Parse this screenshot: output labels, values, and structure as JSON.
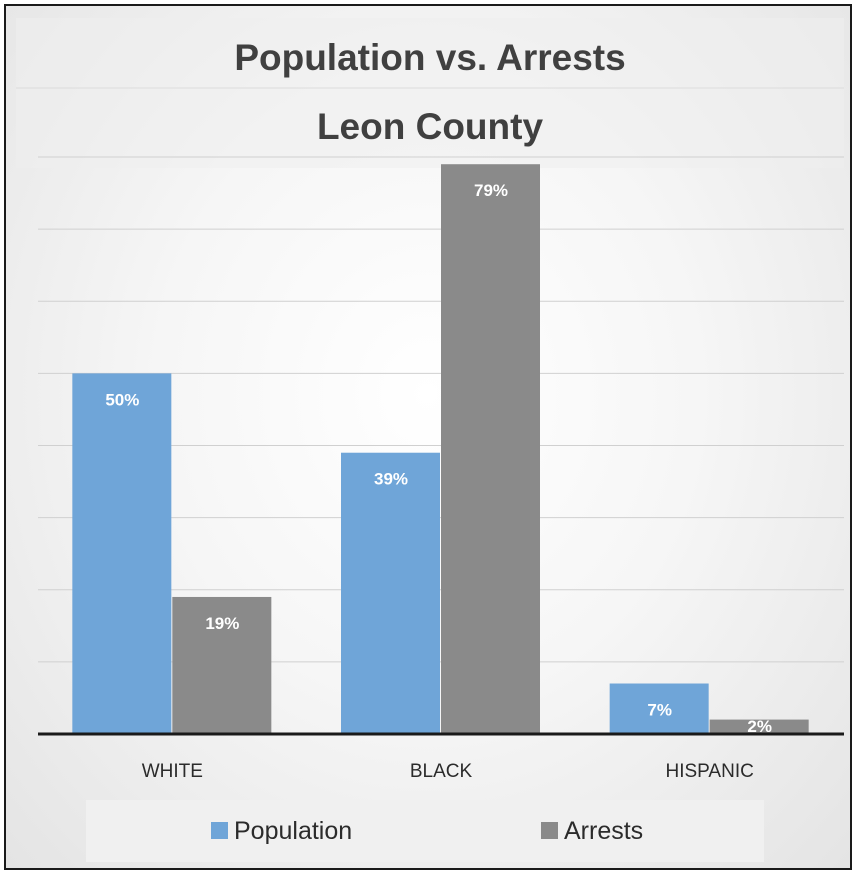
{
  "chart_data": {
    "type": "bar",
    "title": "Population vs. Arrests",
    "subtitle": "Leon County",
    "categories": [
      "WHITE",
      "BLACK",
      "HISPANIC"
    ],
    "series": [
      {
        "name": "Population",
        "values": [
          50,
          39,
          7
        ],
        "labels": [
          "50%",
          "39%",
          "7%"
        ],
        "color": "#6fa5d8"
      },
      {
        "name": "Arrests",
        "values": [
          19,
          79,
          2
        ],
        "labels": [
          "19%",
          "79%",
          "2%"
        ],
        "color": "#8a8a8a"
      }
    ],
    "ylim": [
      0,
      80
    ],
    "grid": true,
    "legend": "bottom"
  }
}
